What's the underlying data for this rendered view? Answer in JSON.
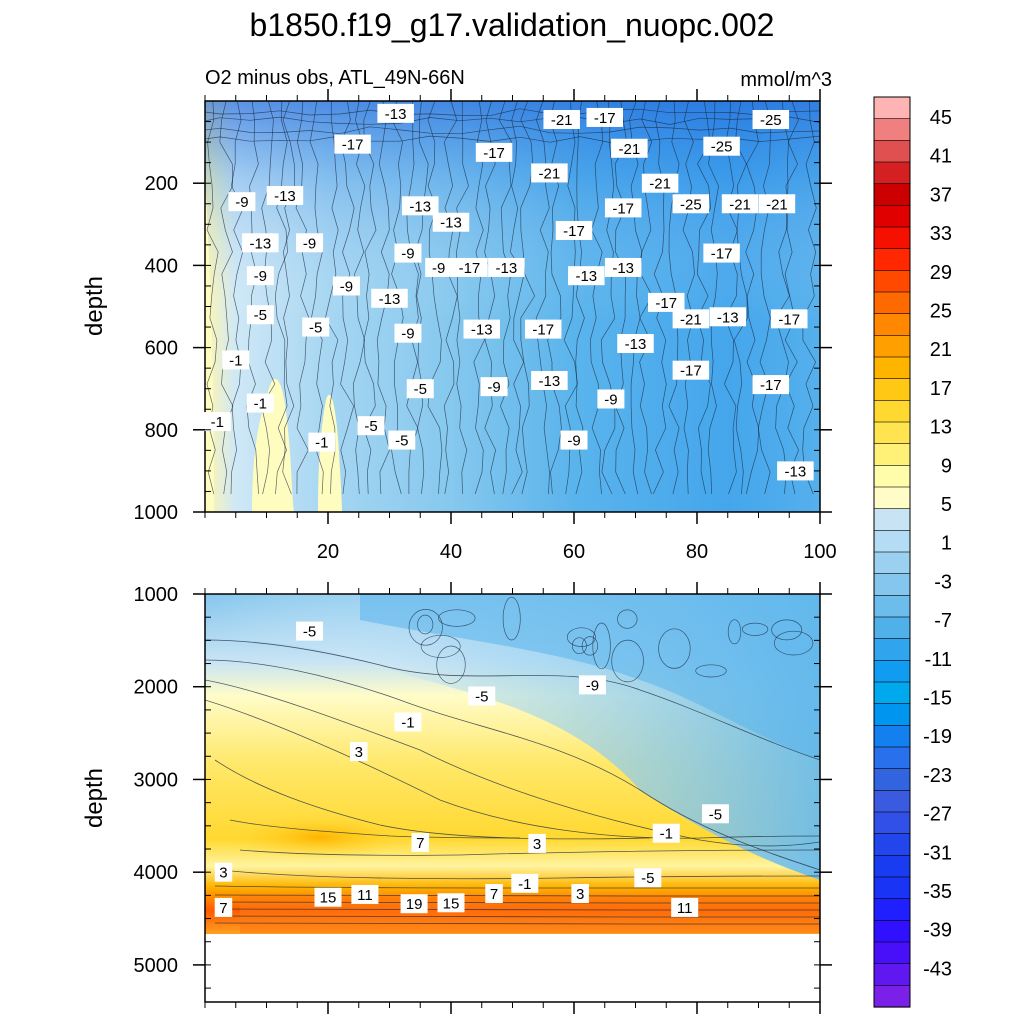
{
  "chart_data": {
    "type": "contour",
    "title": "b1850.f19_g17.validation_nuopc.002",
    "subtitle_left": "O2 minus obs, ATL_49N-66N",
    "units": "mmol/m^3",
    "xaxis": {
      "range": [
        0,
        100
      ],
      "ticks": [
        20,
        40,
        60,
        80,
        100
      ]
    },
    "panels": [
      {
        "name": "upper",
        "ylabel": "depth",
        "ylim": [
          0,
          1000
        ],
        "yticks": [
          200,
          400,
          600,
          800,
          1000
        ],
        "inverted": true,
        "contour_labels": [
          {
            "x": 31,
            "y": 30,
            "t": "-13"
          },
          {
            "x": 58,
            "y": 45,
            "t": "-21"
          },
          {
            "x": 65,
            "y": 40,
            "t": "-17"
          },
          {
            "x": 92,
            "y": 45,
            "t": "-25"
          },
          {
            "x": 24,
            "y": 105,
            "t": "-17"
          },
          {
            "x": 47,
            "y": 125,
            "t": "-17"
          },
          {
            "x": 69,
            "y": 115,
            "t": "-21"
          },
          {
            "x": 84,
            "y": 110,
            "t": "-25"
          },
          {
            "x": 56,
            "y": 175,
            "t": "-21"
          },
          {
            "x": 13,
            "y": 230,
            "t": "-13"
          },
          {
            "x": 6,
            "y": 245,
            "t": "-9"
          },
          {
            "x": 35,
            "y": 255,
            "t": "-13"
          },
          {
            "x": 68,
            "y": 260,
            "t": "-17"
          },
          {
            "x": 74,
            "y": 200,
            "t": "-21"
          },
          {
            "x": 79,
            "y": 250,
            "t": "-25"
          },
          {
            "x": 87,
            "y": 250,
            "t": "-21"
          },
          {
            "x": 93,
            "y": 250,
            "t": "-21"
          },
          {
            "x": 40,
            "y": 295,
            "t": "-13"
          },
          {
            "x": 60,
            "y": 315,
            "t": "-17"
          },
          {
            "x": 9,
            "y": 345,
            "t": "-13"
          },
          {
            "x": 17,
            "y": 345,
            "t": "-9"
          },
          {
            "x": 33,
            "y": 370,
            "t": "-9"
          },
          {
            "x": 38,
            "y": 405,
            "t": "-9"
          },
          {
            "x": 43,
            "y": 405,
            "t": "-17"
          },
          {
            "x": 49,
            "y": 405,
            "t": "-13"
          },
          {
            "x": 62,
            "y": 425,
            "t": "-13"
          },
          {
            "x": 68,
            "y": 405,
            "t": "-13"
          },
          {
            "x": 84,
            "y": 370,
            "t": "-17"
          },
          {
            "x": 9,
            "y": 425,
            "t": "-9"
          },
          {
            "x": 23,
            "y": 450,
            "t": "-9"
          },
          {
            "x": 30,
            "y": 480,
            "t": "-13"
          },
          {
            "x": 75,
            "y": 490,
            "t": "-17"
          },
          {
            "x": 9,
            "y": 520,
            "t": "-5"
          },
          {
            "x": 18,
            "y": 550,
            "t": "-5"
          },
          {
            "x": 33,
            "y": 565,
            "t": "-9"
          },
          {
            "x": 45,
            "y": 555,
            "t": "-13"
          },
          {
            "x": 55,
            "y": 555,
            "t": "-17"
          },
          {
            "x": 79,
            "y": 530,
            "t": "-21"
          },
          {
            "x": 85,
            "y": 525,
            "t": "-13"
          },
          {
            "x": 95,
            "y": 530,
            "t": "-17"
          },
          {
            "x": 70,
            "y": 590,
            "t": "-13"
          },
          {
            "x": 5,
            "y": 630,
            "t": "-1"
          },
          {
            "x": 79,
            "y": 655,
            "t": "-17"
          },
          {
            "x": 35,
            "y": 700,
            "t": "-5"
          },
          {
            "x": 47,
            "y": 695,
            "t": "-9"
          },
          {
            "x": 56,
            "y": 680,
            "t": "-13"
          },
          {
            "x": 66,
            "y": 725,
            "t": "-9"
          },
          {
            "x": 92,
            "y": 690,
            "t": "-17"
          },
          {
            "x": 9,
            "y": 735,
            "t": "-1"
          },
          {
            "x": 2,
            "y": 780,
            "t": "-1"
          },
          {
            "x": 27,
            "y": 790,
            "t": "-5"
          },
          {
            "x": 32,
            "y": 825,
            "t": "-5"
          },
          {
            "x": 19,
            "y": 830,
            "t": "-1"
          },
          {
            "x": 60,
            "y": 825,
            "t": "-9"
          },
          {
            "x": 96,
            "y": 900,
            "t": "-13"
          }
        ]
      },
      {
        "name": "lower",
        "ylabel": "depth",
        "ylim": [
          1000,
          5400
        ],
        "yticks": [
          1000,
          2000,
          3000,
          4000,
          5000
        ],
        "inverted": true,
        "data_floor": 4600,
        "contour_labels": [
          {
            "x": 17,
            "y": 1400,
            "t": "-5"
          },
          {
            "x": 63,
            "y": 1980,
            "t": "-9"
          },
          {
            "x": 45,
            "y": 2100,
            "t": "-5"
          },
          {
            "x": 33,
            "y": 2380,
            "t": "-1"
          },
          {
            "x": 25,
            "y": 2700,
            "t": "3"
          },
          {
            "x": 83,
            "y": 3370,
            "t": "-5"
          },
          {
            "x": 75,
            "y": 3580,
            "t": "-1"
          },
          {
            "x": 35,
            "y": 3680,
            "t": "7"
          },
          {
            "x": 54,
            "y": 3690,
            "t": "3"
          },
          {
            "x": 3,
            "y": 4000,
            "t": "3"
          },
          {
            "x": 72,
            "y": 4060,
            "t": "-5"
          },
          {
            "x": 52,
            "y": 4120,
            "t": "-1"
          },
          {
            "x": 20,
            "y": 4270,
            "t": "15"
          },
          {
            "x": 26,
            "y": 4240,
            "t": "11"
          },
          {
            "x": 47,
            "y": 4230,
            "t": "7"
          },
          {
            "x": 61,
            "y": 4230,
            "t": "3"
          },
          {
            "x": 34,
            "y": 4340,
            "t": "19"
          },
          {
            "x": 40,
            "y": 4330,
            "t": "15"
          },
          {
            "x": 3,
            "y": 4380,
            "t": "7"
          },
          {
            "x": 78,
            "y": 4380,
            "t": "11"
          }
        ]
      }
    ],
    "colorbar": {
      "labels": [
        "45",
        "41",
        "37",
        "33",
        "29",
        "25",
        "21",
        "17",
        "13",
        "9",
        "5",
        "1",
        "-3",
        "-7",
        "-11",
        "-15",
        "-19",
        "-23",
        "-27",
        "-31",
        "-35",
        "-39",
        "-43"
      ],
      "colors": [
        "#ffb4b4",
        "#f08080",
        "#e05050",
        "#d42020",
        "#cc0000",
        "#e00000",
        "#f51000",
        "#ff2800",
        "#ff4800",
        "#ff6a00",
        "#ff8800",
        "#ffa000",
        "#ffb400",
        "#ffc814",
        "#ffd830",
        "#ffe450",
        "#fff078",
        "#fffcaa",
        "#fffcc8",
        "#c8e4f4",
        "#b4dcf4",
        "#9cd0f0",
        "#84c6ee",
        "#6cbcec",
        "#50b0ea",
        "#30a4ec",
        "#109cf0",
        "#00a8ee",
        "#0096f0",
        "#1480f0",
        "#2870ec",
        "#3264e0",
        "#3a5ae0",
        "#3050e8",
        "#2246ec",
        "#1a3cf0",
        "#1a34f6",
        "#2020ff",
        "#3010ff",
        "#4810f8",
        "#6018f0",
        "#7a20e8"
      ]
    }
  }
}
